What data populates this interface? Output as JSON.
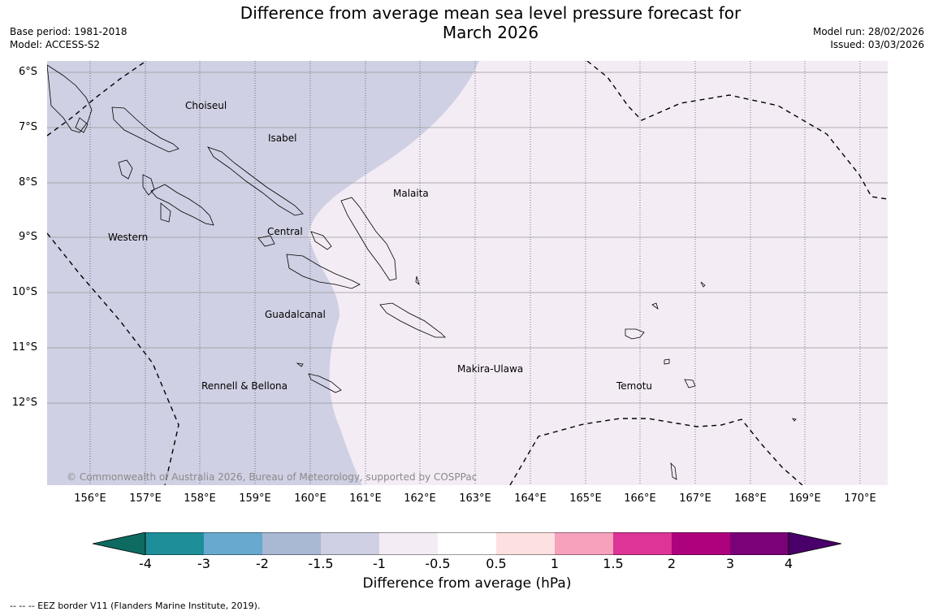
{
  "header": {
    "title_line1": "Difference from average mean sea level pressure forecast for",
    "title_line2": "March 2026",
    "base_period": "Base period: 1981-2018",
    "model": "Model: ACCESS-S2",
    "model_run": "Model run: 28/02/2026",
    "issued": "Issued: 03/03/2026"
  },
  "map": {
    "lat_labels": [
      "6°S",
      "7°S",
      "8°S",
      "9°S",
      "10°S",
      "11°S",
      "12°S"
    ],
    "lon_labels": [
      "156°E",
      "157°E",
      "158°E",
      "159°E",
      "160°E",
      "161°E",
      "162°E",
      "163°E",
      "164°E",
      "165°E",
      "166°E",
      "167°E",
      "168°E",
      "169°E",
      "170°E"
    ],
    "regions": {
      "choiseul": "Choiseul",
      "isabel": "Isabel",
      "malaita": "Malaita",
      "western": "Western",
      "central": "Central",
      "guadalcanal": "Guadalcanal",
      "makira": "Makira-Ulawa",
      "temotu": "Temotu",
      "rennell": "Rennell & Bellona"
    },
    "copyright": "© Commonwealth of Australia 2026, Bureau of Meteorology, supported by COSPPac",
    "fill_colors": {
      "range_minus1.5_to_minus1": "#cfd0e3",
      "range_minus1_to_minus0.5": "#f4ecf5",
      "land_outline": "#000000",
      "graticule": "#999999"
    }
  },
  "colorbar": {
    "ticks": [
      "-4",
      "-3",
      "-2",
      "-1.5",
      "-1",
      "-0.5",
      "0.5",
      "1",
      "1.5",
      "2",
      "3",
      "4"
    ],
    "colors": [
      "#0e6b61",
      "#1e8e99",
      "#67a9cf",
      "#a9b8d3",
      "#cfd0e3",
      "#f4ecf5",
      "#ffffff",
      "#fde0e0",
      "#f7a1bd",
      "#dd3497",
      "#ae017e",
      "#7a0177",
      "#49006a"
    ],
    "title": "Difference from average (hPa)"
  },
  "footnote": "--  --  -- EEZ border V11 (Flanders Marine Institute, 2019)."
}
